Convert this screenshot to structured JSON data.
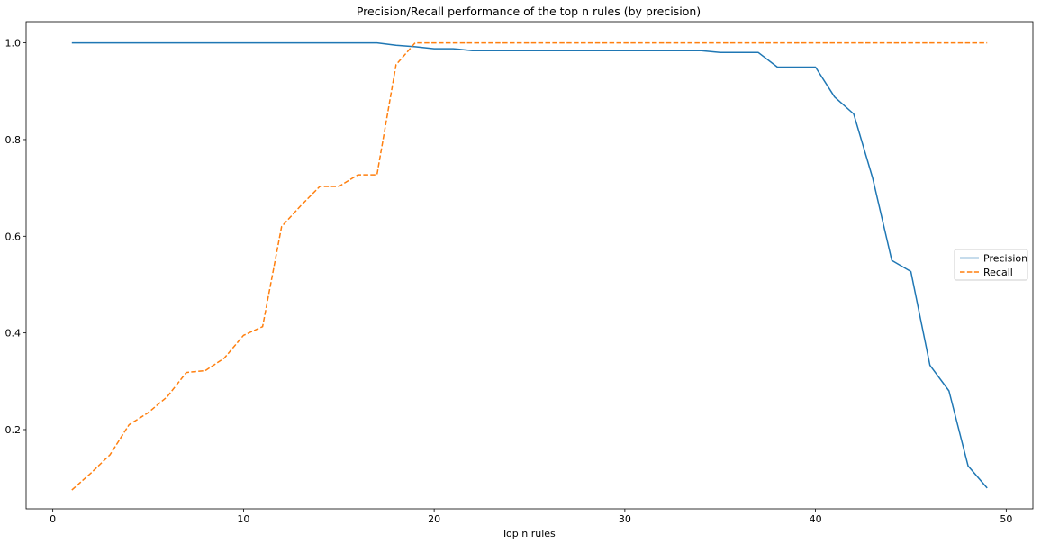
{
  "chart_data": {
    "type": "line",
    "title": "Precision/Recall performance of the top n rules (by precision)",
    "xlabel": "Top n rules",
    "ylabel": "",
    "xlim": [
      -1.4,
      51.4
    ],
    "ylim": [
      0.036,
      1.044
    ],
    "x_ticks": [
      0,
      10,
      20,
      30,
      40,
      50
    ],
    "y_ticks": [
      0.2,
      0.4,
      0.6,
      0.8,
      1.0
    ],
    "y_tick_labels": [
      "0.2",
      "0.4",
      "0.6",
      "0.8",
      "1.0"
    ],
    "grid": false,
    "legend_position": "center-right",
    "x": [
      1,
      2,
      3,
      4,
      5,
      6,
      7,
      8,
      9,
      10,
      11,
      12,
      13,
      14,
      15,
      16,
      17,
      18,
      19,
      20,
      21,
      22,
      23,
      24,
      25,
      26,
      27,
      28,
      29,
      30,
      31,
      32,
      33,
      34,
      35,
      36,
      37,
      38,
      39,
      40,
      41,
      42,
      43,
      44,
      45,
      46,
      47,
      48,
      49
    ],
    "series": [
      {
        "name": "Precision",
        "color": "#1f77b4",
        "style": "solid",
        "values": [
          1.0,
          1.0,
          1.0,
          1.0,
          1.0,
          1.0,
          1.0,
          1.0,
          1.0,
          1.0,
          1.0,
          1.0,
          1.0,
          1.0,
          1.0,
          1.0,
          1.0,
          0.995,
          0.992,
          0.988,
          0.988,
          0.984,
          0.984,
          0.984,
          0.984,
          0.984,
          0.984,
          0.984,
          0.984,
          0.984,
          0.984,
          0.984,
          0.984,
          0.984,
          0.98,
          0.98,
          0.98,
          0.95,
          0.95,
          0.95,
          0.888,
          0.853,
          0.72,
          0.55,
          0.527,
          0.333,
          0.28,
          0.125,
          0.079
        ]
      },
      {
        "name": "Recall",
        "color": "#ff7f0e",
        "style": "dashed",
        "values": [
          0.075,
          0.11,
          0.148,
          0.21,
          0.235,
          0.268,
          0.318,
          0.322,
          0.348,
          0.395,
          0.413,
          0.62,
          0.663,
          0.703,
          0.703,
          0.727,
          0.727,
          0.955,
          1.0,
          1.0,
          1.0,
          1.0,
          1.0,
          1.0,
          1.0,
          1.0,
          1.0,
          1.0,
          1.0,
          1.0,
          1.0,
          1.0,
          1.0,
          1.0,
          1.0,
          1.0,
          1.0,
          1.0,
          1.0,
          1.0,
          1.0,
          1.0,
          1.0,
          1.0,
          1.0,
          1.0,
          1.0,
          1.0,
          1.0
        ]
      }
    ]
  }
}
